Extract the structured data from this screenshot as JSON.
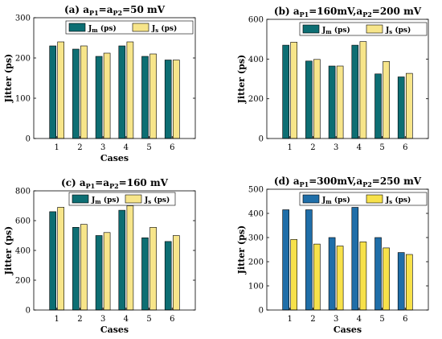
{
  "chart_data": [
    {
      "type": "bar",
      "title_main": "(a) a",
      "title_parts": [
        {
          "t": "(a) a",
          "s": false
        },
        {
          "t": "P1",
          "s": true
        },
        {
          "t": "=a",
          "s": false
        },
        {
          "t": "P2",
          "s": true
        },
        {
          "t": "=50 mV",
          "s": false
        }
      ],
      "xlabel": "Cases",
      "ylabel": "Jitter (ps)",
      "ylim": [
        0,
        300
      ],
      "yticks": [
        0,
        100,
        200,
        300
      ],
      "categories": [
        "1",
        "2",
        "3",
        "4",
        "5",
        "6"
      ],
      "series": [
        {
          "name": "J",
          "sub": "m",
          "unit": " (ps)",
          "color": "#0d6e73",
          "values": [
            230,
            222,
            204,
            230,
            204,
            195
          ]
        },
        {
          "name": "J",
          "sub": "s",
          "unit": " (ps)",
          "color": "#f7e58a",
          "values": [
            240,
            230,
            212,
            240,
            210,
            195
          ]
        }
      ],
      "legend": "top"
    },
    {
      "type": "bar",
      "title_parts": [
        {
          "t": "(b) a",
          "s": false
        },
        {
          "t": "P1",
          "s": true
        },
        {
          "t": "=160mV,a",
          "s": false
        },
        {
          "t": "P2",
          "s": true
        },
        {
          "t": "=200 mV",
          "s": false
        }
      ],
      "xlabel": "",
      "ylabel": "Jitter (ps)",
      "ylim": [
        0,
        600
      ],
      "yticks": [
        0,
        200,
        400,
        600
      ],
      "categories": [
        "1",
        "2",
        "3",
        "4",
        "5",
        "6"
      ],
      "series": [
        {
          "name": "J",
          "sub": "m",
          "unit": " (ps)",
          "color": "#0d6e73",
          "values": [
            470,
            390,
            365,
            470,
            325,
            310
          ]
        },
        {
          "name": "J",
          "sub": "s",
          "unit": " (ps)",
          "color": "#f7e58a",
          "values": [
            485,
            398,
            365,
            488,
            388,
            328
          ]
        }
      ],
      "legend": "top-right"
    },
    {
      "type": "bar",
      "title_parts": [
        {
          "t": "(c) a",
          "s": false
        },
        {
          "t": "P1",
          "s": true
        },
        {
          "t": "=a",
          "s": false
        },
        {
          "t": "P2",
          "s": true
        },
        {
          "t": "=160 mV",
          "s": false
        }
      ],
      "xlabel": "Cases",
      "ylabel": "Jitter (ps)",
      "ylim": [
        0,
        800
      ],
      "yticks": [
        0,
        200,
        400,
        600,
        800
      ],
      "categories": [
        "1",
        "2",
        "3",
        "4",
        "5",
        "6"
      ],
      "series": [
        {
          "name": "J",
          "sub": "m",
          "unit": " (ps)",
          "color": "#0d6e73",
          "values": [
            660,
            555,
            500,
            670,
            485,
            460
          ]
        },
        {
          "name": "J",
          "sub": "s",
          "unit": " (ps)",
          "color": "#f7e58a",
          "values": [
            690,
            575,
            520,
            700,
            555,
            500
          ]
        }
      ],
      "legend": "top"
    },
    {
      "type": "bar",
      "title_parts": [
        {
          "t": "(d) a",
          "s": false
        },
        {
          "t": "P1",
          "s": true
        },
        {
          "t": "=300mV,a",
          "s": false
        },
        {
          "t": "P2",
          "s": true
        },
        {
          "t": "=250 mV",
          "s": false
        }
      ],
      "xlabel": "Cases",
      "ylabel": "Jitter (ps)",
      "ylim": [
        0,
        500
      ],
      "yticks": [
        0,
        100,
        200,
        300,
        400,
        500
      ],
      "categories": [
        "1",
        "2",
        "3",
        "4",
        "5",
        "6"
      ],
      "series": [
        {
          "name": "J",
          "sub": "m",
          "unit": " (ps)",
          "color": "#1f6ea8",
          "values": [
            415,
            415,
            300,
            425,
            300,
            238
          ]
        },
        {
          "name": "J",
          "sub": "s",
          "unit": " (ps)",
          "color": "#f7e14a",
          "values": [
            292,
            273,
            265,
            282,
            257,
            230
          ]
        }
      ],
      "legend": "top-right"
    }
  ]
}
